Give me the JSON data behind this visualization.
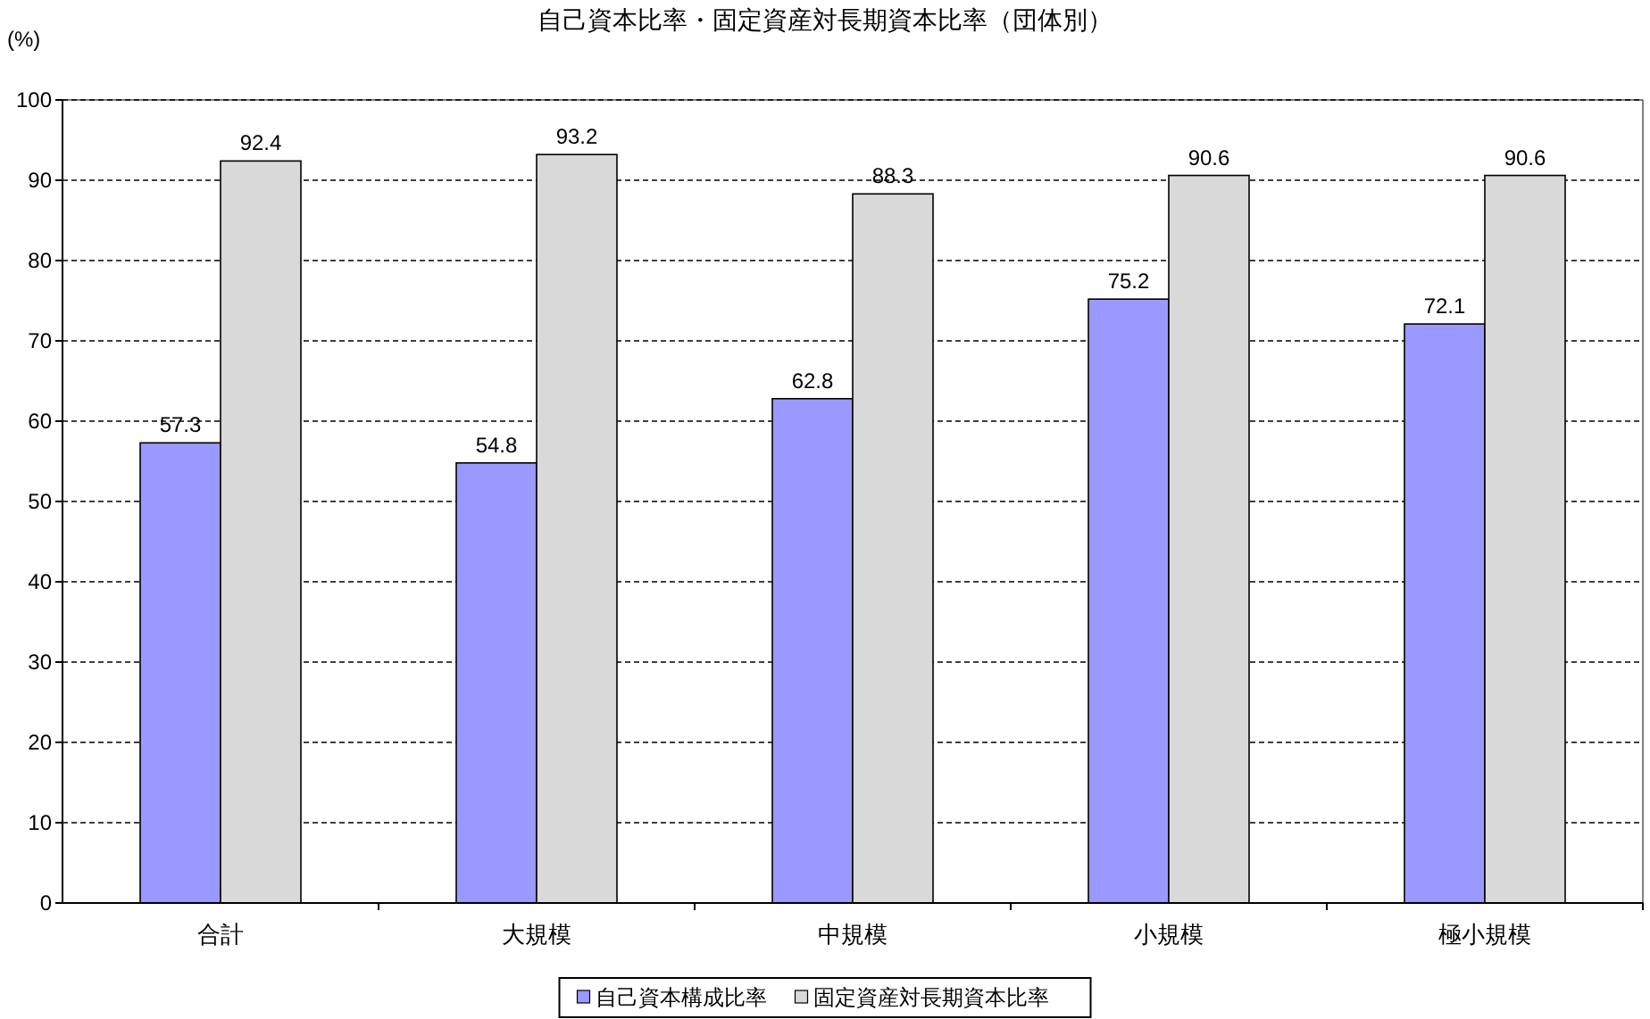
{
  "chart_data": {
    "type": "bar",
    "title": "自己資本比率・固定資産対長期資本比率（団体別）",
    "ylabel": "(%)",
    "categories": [
      "合計",
      "大規模",
      "中規模",
      "小規模",
      "極小規模"
    ],
    "series": [
      {
        "name": "自己資本構成比率",
        "color": "#9999ff",
        "values": [
          57.3,
          54.8,
          62.8,
          75.2,
          72.1
        ]
      },
      {
        "name": "固定資産対長期資本比率",
        "color": "#d9d9d9",
        "values": [
          92.4,
          93.2,
          88.3,
          90.6,
          90.6
        ]
      }
    ],
    "ylim": [
      0,
      100
    ],
    "yticks": [
      0,
      10,
      20,
      30,
      40,
      50,
      60,
      70,
      80,
      90,
      100
    ],
    "grid": "y",
    "legend": "bottom",
    "data_labels": true
  }
}
